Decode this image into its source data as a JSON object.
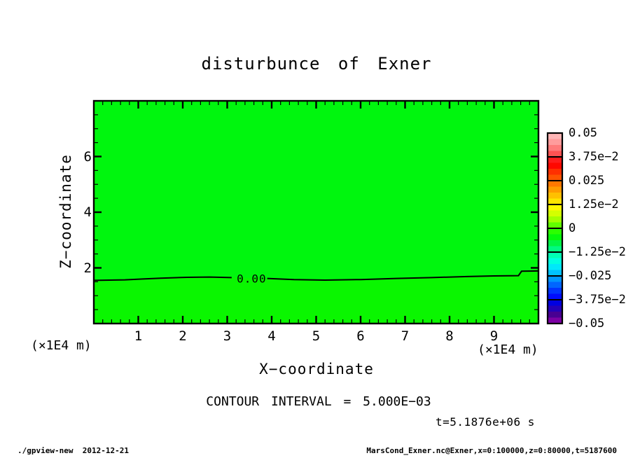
{
  "title": "disturbunce of Exner",
  "annotations": {
    "contour_interval": "CONTOUR INTERVAL = 5.000E−03",
    "time": "t=5.1876e+06 s"
  },
  "footer": {
    "left": "./gpview-new  2012-12-21",
    "right": "MarsCond_Exner.nc@Exner,x=0:100000,z=0:80000,t=5187600"
  },
  "chart_data": {
    "type": "heatmap",
    "title": "disturbunce of Exner",
    "xlabel": "X−coordinate",
    "ylabel": "Z−coordinate",
    "x_units_note": "(×1E4 m)",
    "y_units_note": "(×1E4 m)",
    "x_axis": {
      "range": [
        0,
        10
      ],
      "major_ticks": [
        1,
        2,
        3,
        4,
        5,
        6,
        7,
        8,
        9
      ],
      "minor_step": 0.2
    },
    "z_axis": {
      "range": [
        0,
        8
      ],
      "major_ticks": [
        2,
        4,
        6
      ],
      "minor_step": 0.5
    },
    "contour_interval": 0.005,
    "field": {
      "description": "Exner function disturbance, nearly zero everywhere; single 0.00 contour near z=1.6e4 m",
      "fill_above_contour": "#00f60e",
      "fill_below_contour": "#0af600",
      "contour_level": 0,
      "contour_label": "0.00",
      "contour_label_pos": [
        3.55,
        1.62
      ],
      "label_gap_x": [
        3.1,
        3.9
      ],
      "contour_points": [
        [
          0,
          1.55
        ],
        [
          0.7,
          1.57
        ],
        [
          1.1,
          1.6
        ],
        [
          1.5,
          1.63
        ],
        [
          2.1,
          1.66
        ],
        [
          2.6,
          1.67
        ],
        [
          3.1,
          1.65
        ],
        [
          3.9,
          1.62
        ],
        [
          4.5,
          1.58
        ],
        [
          5.2,
          1.56
        ],
        [
          6.0,
          1.58
        ],
        [
          6.8,
          1.62
        ],
        [
          7.6,
          1.65
        ],
        [
          8.4,
          1.69
        ],
        [
          9.0,
          1.71
        ],
        [
          9.55,
          1.72
        ],
        [
          9.62,
          1.88
        ],
        [
          10,
          1.89
        ]
      ]
    },
    "colorbar": {
      "labels": [
        "0.05",
        "3.75e−2",
        "0.025",
        "1.25e−2",
        "0",
        "−1.25e−2",
        "−0.025",
        "−3.75e−2",
        "−0.05"
      ],
      "tick_values": [
        0.05,
        0.0375,
        0.025,
        0.0125,
        0,
        -0.0125,
        -0.025,
        -0.0375,
        -0.05
      ],
      "band_colors_top_to_bottom": [
        "#ffb6b6",
        "#ff9c9c",
        "#ff7a7a",
        "#ff5252",
        "#ff1c1c",
        "#ff0800",
        "#ff3000",
        "#ff5400",
        "#ff7800",
        "#ff9c00",
        "#ffc000",
        "#ffe400",
        "#fff800",
        "#d4ff00",
        "#a4ff00",
        "#60ff00",
        "#2cff00",
        "#06fa0c",
        "#00f546",
        "#00fa82",
        "#00ffb4",
        "#00ffe0",
        "#00e8fa",
        "#00c2ff",
        "#0096ff",
        "#0066ff",
        "#0034ff",
        "#000cff",
        "#0000e0",
        "#2400b8",
        "#480092",
        "#7c00a4"
      ]
    }
  }
}
